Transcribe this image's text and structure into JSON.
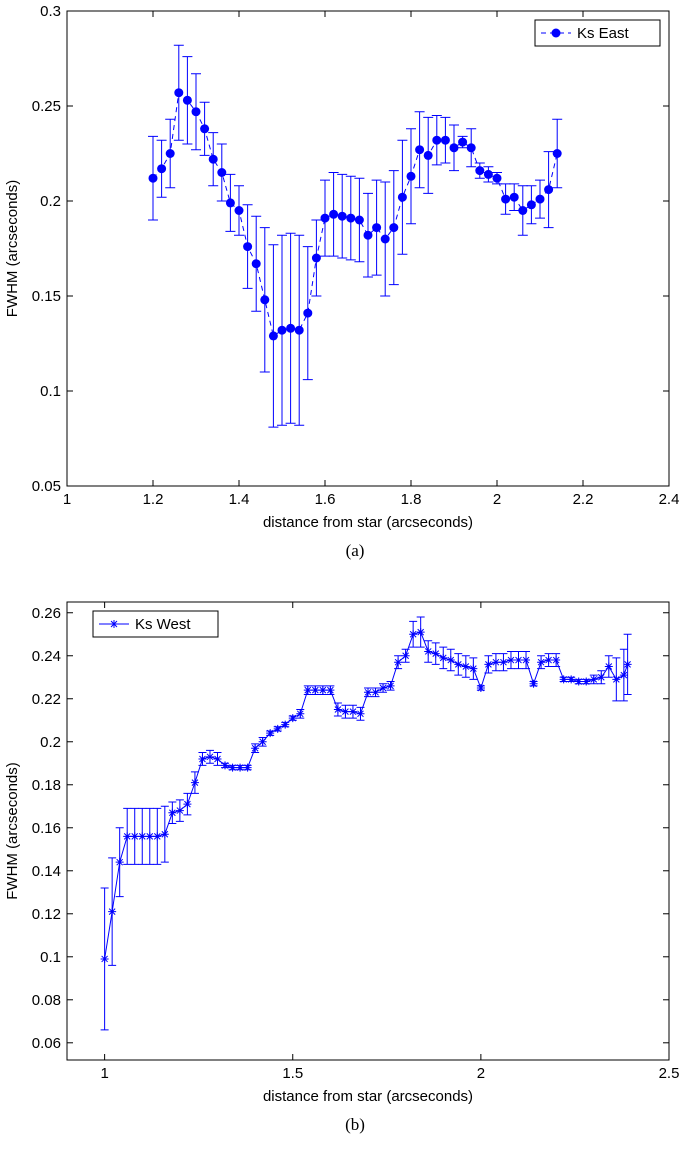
{
  "chart_data": [
    {
      "type": "line",
      "caption": "(a)",
      "xlabel": "distance from star (arcseconds)",
      "ylabel": "FWHM (arcseconds)",
      "xlim": [
        1,
        2.4
      ],
      "xticks": [
        1,
        1.2,
        1.4,
        1.6,
        1.8,
        2,
        2.2,
        2.4
      ],
      "ylim": [
        0.05,
        0.3
      ],
      "yticks": [
        0.05,
        0.1,
        0.15,
        0.2,
        0.25,
        0.3
      ],
      "legend": "upper right",
      "x": [
        1.2,
        1.22,
        1.24,
        1.26,
        1.28,
        1.3,
        1.32,
        1.34,
        1.36,
        1.38,
        1.4,
        1.42,
        1.44,
        1.46,
        1.48,
        1.5,
        1.52,
        1.54,
        1.56,
        1.58,
        1.6,
        1.62,
        1.64,
        1.66,
        1.68,
        1.7,
        1.72,
        1.74,
        1.76,
        1.78,
        1.8,
        1.82,
        1.84,
        1.86,
        1.88,
        1.9,
        1.92,
        1.94,
        1.96,
        1.98,
        2,
        2.02,
        2.04,
        2.06,
        2.08,
        2.1,
        2.12,
        2.14
      ],
      "series": [
        {
          "name": "Ks East",
          "color": "#0000ff",
          "marker": "o",
          "linestyle": "dashed",
          "values": [
            0.212,
            0.217,
            0.225,
            0.257,
            0.253,
            0.247,
            0.238,
            0.222,
            0.215,
            0.199,
            0.195,
            0.176,
            0.167,
            0.148,
            0.129,
            0.132,
            0.133,
            0.132,
            0.141,
            0.17,
            0.191,
            0.193,
            0.192,
            0.191,
            0.19,
            0.182,
            0.186,
            0.18,
            0.186,
            0.202,
            0.213,
            0.227,
            0.224,
            0.232,
            0.232,
            0.228,
            0.231,
            0.228,
            0.216,
            0.214,
            0.212,
            0.201,
            0.202,
            0.195,
            0.198,
            0.201,
            0.206,
            0.225
          ],
          "errors": [
            0.022,
            0.015,
            0.018,
            0.025,
            0.023,
            0.02,
            0.014,
            0.014,
            0.015,
            0.015,
            0.013,
            0.022,
            0.025,
            0.038,
            0.048,
            0.05,
            0.05,
            0.05,
            0.035,
            0.02,
            0.02,
            0.022,
            0.022,
            0.022,
            0.022,
            0.022,
            0.025,
            0.03,
            0.03,
            0.03,
            0.025,
            0.02,
            0.02,
            0.013,
            0.012,
            0.012,
            0.003,
            0.01,
            0.004,
            0.004,
            0.003,
            0.008,
            0.007,
            0.013,
            0.01,
            0.01,
            0.02,
            0.018
          ]
        }
      ]
    },
    {
      "type": "line",
      "caption": "(b)",
      "xlabel": "distance from star (arcseconds)",
      "ylabel": "FWHM (arcseconds)",
      "xlim": [
        0.9,
        2.5
      ],
      "xticks": [
        1,
        1.5,
        2,
        2.5
      ],
      "ylim": [
        0.052,
        0.265
      ],
      "yticks": [
        0.06,
        0.08,
        0.1,
        0.12,
        0.14,
        0.16,
        0.18,
        0.2,
        0.22,
        0.24,
        0.26
      ],
      "legend": "upper left",
      "x": [
        1,
        1.02,
        1.04,
        1.06,
        1.08,
        1.1,
        1.12,
        1.14,
        1.16,
        1.18,
        1.2,
        1.22,
        1.24,
        1.26,
        1.28,
        1.3,
        1.32,
        1.34,
        1.36,
        1.38,
        1.4,
        1.42,
        1.44,
        1.46,
        1.48,
        1.5,
        1.52,
        1.54,
        1.56,
        1.58,
        1.6,
        1.62,
        1.64,
        1.66,
        1.68,
        1.7,
        1.72,
        1.74,
        1.76,
        1.78,
        1.8,
        1.82,
        1.84,
        1.86,
        1.88,
        1.9,
        1.92,
        1.94,
        1.96,
        1.98,
        2,
        2.02,
        2.04,
        2.06,
        2.08,
        2.1,
        2.12,
        2.14,
        2.16,
        2.18,
        2.2,
        2.22,
        2.24,
        2.26,
        2.28,
        2.3,
        2.32,
        2.34,
        2.36,
        2.38,
        2.39
      ],
      "series": [
        {
          "name": "Ks West",
          "color": "#0000ff",
          "marker": "*",
          "linestyle": "solid",
          "values": [
            0.099,
            0.121,
            0.144,
            0.156,
            0.156,
            0.156,
            0.156,
            0.156,
            0.157,
            0.167,
            0.168,
            0.171,
            0.181,
            0.192,
            0.193,
            0.192,
            0.189,
            0.188,
            0.188,
            0.188,
            0.197,
            0.2,
            0.204,
            0.206,
            0.208,
            0.211,
            0.213,
            0.224,
            0.224,
            0.224,
            0.224,
            0.215,
            0.214,
            0.214,
            0.213,
            0.223,
            0.223,
            0.225,
            0.226,
            0.237,
            0.24,
            0.25,
            0.251,
            0.242,
            0.241,
            0.239,
            0.238,
            0.236,
            0.235,
            0.234,
            0.225,
            0.236,
            0.237,
            0.237,
            0.238,
            0.238,
            0.238,
            0.227,
            0.237,
            0.238,
            0.238,
            0.229,
            0.229,
            0.228,
            0.228,
            0.229,
            0.23,
            0.235,
            0.229,
            0.231,
            0.236
          ],
          "errors": [
            0.033,
            0.025,
            0.016,
            0.013,
            0.013,
            0.013,
            0.013,
            0.013,
            0.013,
            0.005,
            0.005,
            0.005,
            0.005,
            0.003,
            0.003,
            0.003,
            0.001,
            0.001,
            0.001,
            0.001,
            0.002,
            0.002,
            0.001,
            0.001,
            0.001,
            0.001,
            0.002,
            0.002,
            0.002,
            0.002,
            0.002,
            0.003,
            0.003,
            0.003,
            0.003,
            0.002,
            0.002,
            0.002,
            0.002,
            0.003,
            0.003,
            0.006,
            0.007,
            0.005,
            0.005,
            0.005,
            0.005,
            0.005,
            0.005,
            0.005,
            0.001,
            0.004,
            0.004,
            0.004,
            0.004,
            0.004,
            0.004,
            0.001,
            0.003,
            0.003,
            0.003,
            0.001,
            0.001,
            0.001,
            0.001,
            0.002,
            0.003,
            0.005,
            0.01,
            0.012,
            0.014
          ]
        }
      ]
    }
  ]
}
